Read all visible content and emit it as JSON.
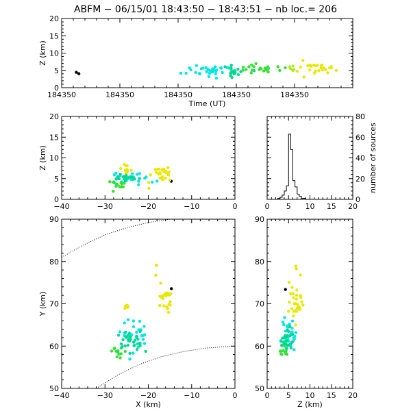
{
  "figure": {
    "title": "ABFM − 06/15/01 18:43:50 − 18:43:51 − nb loc.=     206"
  },
  "chart_data": [
    {
      "id": "time-height",
      "type": "scatter",
      "xlabel": "Time (UT)",
      "ylabel": "Z (km)",
      "xlim": [
        0,
        1
      ],
      "ylim": [
        0,
        20
      ],
      "xticks": [
        0,
        0.2,
        0.4,
        0.6,
        0.8
      ],
      "xticklabels": [
        "184350",
        "184350",
        "184350",
        "184350",
        "184350"
      ],
      "yticks": [
        0,
        5,
        10,
        15,
        20
      ],
      "clusters": [
        {
          "color": "#000000",
          "n": 2,
          "x": [
            0.045,
            0.005
          ],
          "y": [
            4.3,
            0.4
          ]
        },
        {
          "color": "#00e5e5",
          "n": 34,
          "x": [
            0.515,
            0.04
          ],
          "y": [
            5.0,
            0.9
          ]
        },
        {
          "color": "#00d890",
          "n": 20,
          "x": [
            0.59,
            0.03
          ],
          "y": [
            4.6,
            0.9
          ]
        },
        {
          "color": "#33e233",
          "n": 22,
          "x": [
            0.68,
            0.035
          ],
          "y": [
            5.4,
            0.7
          ]
        },
        {
          "color": "#aaee22",
          "n": 6,
          "x": [
            0.79,
            0.01
          ],
          "y": [
            6.0,
            0.7
          ]
        },
        {
          "color": "#e8e800",
          "n": 26,
          "x": [
            0.88,
            0.04
          ],
          "y": [
            6.4,
            1.2
          ]
        }
      ]
    },
    {
      "id": "x-z",
      "type": "scatter",
      "xlabel": "",
      "ylabel": "Z (km)",
      "xlim": [
        -40,
        0
      ],
      "ylim": [
        0,
        20
      ],
      "xticks": [
        -40,
        -30,
        -20,
        -10,
        0
      ],
      "xticklabels": [
        "−40",
        "−30",
        "−20",
        "−10",
        "0"
      ],
      "yticks": [
        0,
        5,
        10,
        15,
        20
      ],
      "clusters": [
        {
          "color": "#000000",
          "n": 1,
          "x": [
            -14.6,
            0.2
          ],
          "y": [
            4.3,
            0.2
          ]
        },
        {
          "color": "#00e5e5",
          "n": 26,
          "x": [
            -23.5,
            2.0
          ],
          "y": [
            5.0,
            0.7
          ]
        },
        {
          "color": "#00d890",
          "n": 18,
          "x": [
            -24.5,
            2.0
          ],
          "y": [
            5.0,
            0.8
          ]
        },
        {
          "color": "#33e233",
          "n": 12,
          "x": [
            -27.5,
            1.0
          ],
          "y": [
            3.8,
            0.6
          ]
        },
        {
          "color": "#e8e800",
          "n": 26,
          "x": [
            -17.0,
            1.5
          ],
          "y": [
            5.8,
            1.1
          ]
        },
        {
          "color": "#e8e800",
          "n": 10,
          "x": [
            -25.0,
            0.8
          ],
          "y": [
            7.6,
            0.6
          ]
        }
      ]
    },
    {
      "id": "height-histogram",
      "type": "bar",
      "xlabel": "",
      "ylabel": "number of sources",
      "xlim": [
        0,
        20
      ],
      "ylim": [
        0,
        80
      ],
      "xticks": [
        0,
        5,
        10,
        15,
        20
      ],
      "xticklabels": [
        "0",
        "5",
        "10",
        "15",
        "20"
      ],
      "yticks": [
        0,
        20,
        40,
        60,
        80
      ],
      "bin_width": 0.5,
      "bin_start": 0,
      "values": [
        0,
        0,
        0,
        0,
        0,
        1,
        2,
        4,
        8,
        13,
        63,
        48,
        18,
        12,
        5,
        3,
        1,
        1,
        0,
        0,
        0,
        0,
        0,
        0,
        0,
        0,
        0,
        0,
        0,
        0,
        0,
        0,
        0,
        0,
        0,
        0,
        0,
        0,
        0,
        0
      ]
    },
    {
      "id": "x-y",
      "type": "scatter",
      "xlabel": "X (km)",
      "ylabel": "Y (km)",
      "xlim": [
        -40,
        0
      ],
      "ylim": [
        50,
        90
      ],
      "xticks": [
        -40,
        -30,
        -20,
        -10,
        0
      ],
      "xticklabels": [
        "−40",
        "−30",
        "−20",
        "−10",
        "0"
      ],
      "yticks": [
        50,
        60,
        70,
        80,
        90
      ],
      "clusters": [
        {
          "color": "#000000",
          "n": 1,
          "x": [
            -14.6,
            0.2
          ],
          "y": [
            73.4,
            0.2
          ]
        },
        {
          "color": "#00e5e5",
          "n": 30,
          "x": [
            -23.0,
            1.5
          ],
          "y": [
            62.5,
            1.8
          ]
        },
        {
          "color": "#00d890",
          "n": 28,
          "x": [
            -24.0,
            1.8
          ],
          "y": [
            61.0,
            1.5
          ]
        },
        {
          "color": "#33e233",
          "n": 10,
          "x": [
            -27.5,
            0.8
          ],
          "y": [
            58.5,
            0.6
          ]
        },
        {
          "color": "#e8e800",
          "n": 24,
          "x": [
            -16.2,
            0.8
          ],
          "y": [
            71.0,
            1.8
          ]
        },
        {
          "color": "#e8e800",
          "n": 6,
          "x": [
            -25.3,
            0.4
          ],
          "y": [
            69.5,
            0.5
          ]
        },
        {
          "color": "#e8e800",
          "n": 3,
          "x": [
            -18.3,
            0.3
          ],
          "y": [
            78.0,
            1.2
          ]
        }
      ],
      "dotted_curves": [
        {
          "x": [
            -40,
            -35,
            -30,
            -25,
            -20,
            -15,
            -10,
            -5,
            0
          ],
          "y": [
            81,
            83.9,
            86.3,
            88.0,
            89.2,
            90,
            90.6,
            90.9,
            91
          ]
        },
        {
          "x": [
            -32,
            -27,
            -22,
            -17,
            -12,
            -7,
            -2,
            0
          ],
          "y": [
            50,
            53.2,
            55.7,
            57.5,
            58.7,
            59.5,
            59.9,
            60
          ]
        }
      ]
    },
    {
      "id": "z-y",
      "type": "scatter",
      "xlabel": "Z (km)",
      "ylabel": "",
      "xlim": [
        0,
        20
      ],
      "ylim": [
        50,
        90
      ],
      "xticks": [
        0,
        5,
        10,
        15,
        20
      ],
      "xticklabels": [
        "0",
        "5",
        "10",
        "15",
        "20"
      ],
      "yticks": [
        50,
        60,
        70,
        80,
        90
      ],
      "clusters": [
        {
          "color": "#000000",
          "n": 1,
          "x": [
            4.3,
            0.1
          ],
          "y": [
            73.4,
            0.2
          ]
        },
        {
          "color": "#00e5e5",
          "n": 30,
          "x": [
            5.0,
            0.8
          ],
          "y": [
            62.5,
            1.8
          ]
        },
        {
          "color": "#00d890",
          "n": 28,
          "x": [
            4.8,
            0.9
          ],
          "y": [
            61.0,
            1.5
          ]
        },
        {
          "color": "#33e233",
          "n": 10,
          "x": [
            3.8,
            0.6
          ],
          "y": [
            58.5,
            0.6
          ]
        },
        {
          "color": "#e8e800",
          "n": 24,
          "x": [
            6.0,
            0.9
          ],
          "y": [
            71.0,
            1.8
          ]
        },
        {
          "color": "#e8e800",
          "n": 6,
          "x": [
            7.6,
            0.5
          ],
          "y": [
            69.5,
            0.5
          ]
        },
        {
          "color": "#e8e800",
          "n": 3,
          "x": [
            7.0,
            0.6
          ],
          "y": [
            78.0,
            1.2
          ]
        }
      ]
    }
  ]
}
